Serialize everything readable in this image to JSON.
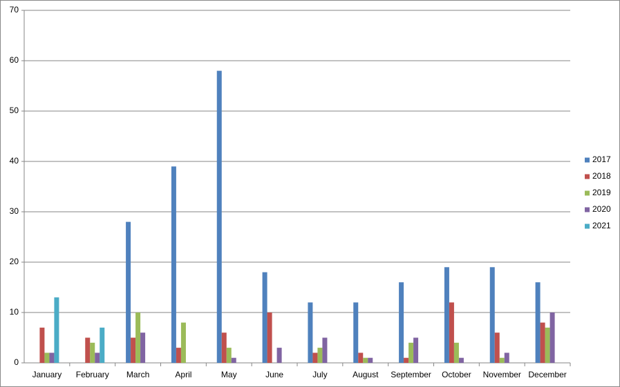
{
  "chart_data": {
    "type": "bar",
    "categories": [
      "January",
      "February",
      "March",
      "April",
      "May",
      "June",
      "July",
      "August",
      "September",
      "October",
      "November",
      "December"
    ],
    "series": [
      {
        "name": "2017",
        "color": "#4f81bd",
        "values": [
          null,
          null,
          28,
          39,
          58,
          18,
          12,
          12,
          16,
          19,
          19,
          16
        ]
      },
      {
        "name": "2018",
        "color": "#c0504d",
        "values": [
          7,
          5,
          5,
          3,
          6,
          10,
          2,
          2,
          1,
          12,
          6,
          8
        ]
      },
      {
        "name": "2019",
        "color": "#9bbb59",
        "values": [
          2,
          4,
          10,
          8,
          3,
          null,
          3,
          1,
          4,
          4,
          1,
          7
        ]
      },
      {
        "name": "2020",
        "color": "#8064a2",
        "values": [
          2,
          2,
          6,
          null,
          1,
          3,
          5,
          1,
          5,
          1,
          2,
          10
        ]
      },
      {
        "name": "2021",
        "color": "#4bacc6",
        "values": [
          13,
          7,
          null,
          null,
          null,
          null,
          null,
          null,
          null,
          null,
          null,
          null
        ]
      }
    ],
    "ylim": [
      0,
      70
    ],
    "yticks": [
      0,
      10,
      20,
      30,
      40,
      50,
      60,
      70
    ],
    "grid": true,
    "legend": "right"
  }
}
